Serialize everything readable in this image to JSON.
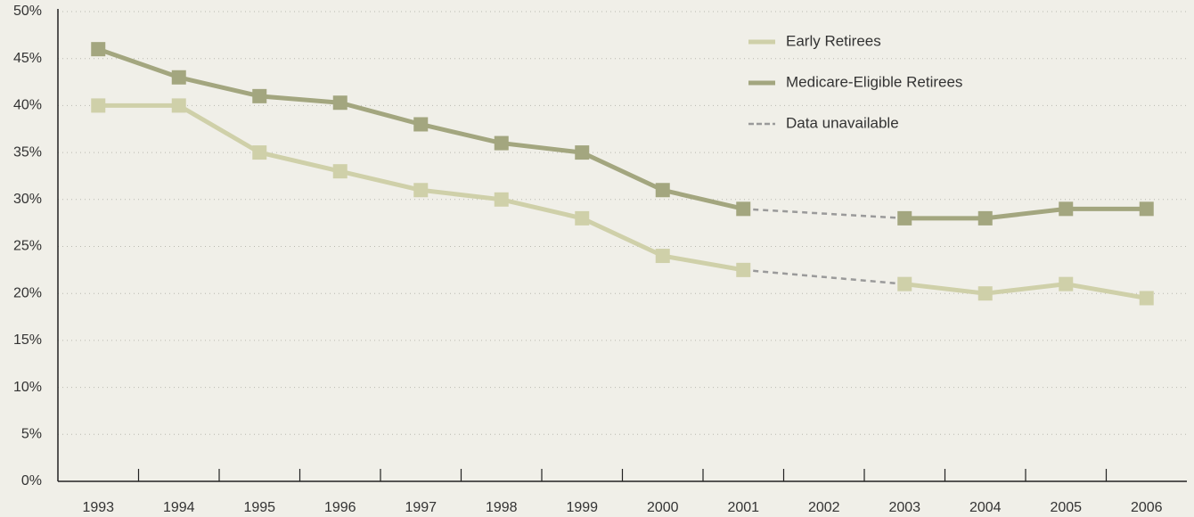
{
  "chart_data": {
    "type": "line",
    "categories": [
      "1993",
      "1994",
      "1995",
      "1996",
      "1997",
      "1998",
      "1999",
      "2000",
      "2001",
      "2002",
      "2003",
      "2004",
      "2005",
      "2006"
    ],
    "series": [
      {
        "name": "Early Retirees",
        "color": "#cfd0a9",
        "values": [
          40,
          40,
          35,
          33,
          31,
          30,
          28,
          24,
          22.5,
          null,
          21,
          20,
          21,
          19.5
        ]
      },
      {
        "name": "Medicare-Eligible Retirees",
        "color": "#a3a67f",
        "values": [
          46,
          43,
          41,
          40.3,
          38,
          36,
          35,
          31,
          29,
          null,
          28,
          28,
          29,
          29
        ]
      }
    ],
    "gap_label": "Data unavailable",
    "gap_color": "#9a9a9a",
    "ylim": [
      0,
      50
    ],
    "yticks": [
      {
        "value": 0,
        "label": "0%"
      },
      {
        "value": 5,
        "label": "5%"
      },
      {
        "value": 10,
        "label": "10%"
      },
      {
        "value": 15,
        "label": "15%"
      },
      {
        "value": 20,
        "label": "20%"
      },
      {
        "value": 25,
        "label": "25%"
      },
      {
        "value": 30,
        "label": "30%"
      },
      {
        "value": 35,
        "label": "35%"
      },
      {
        "value": 40,
        "label": "40%"
      },
      {
        "value": 45,
        "label": "45%"
      },
      {
        "value": 50,
        "label": "50%"
      }
    ],
    "grid": true,
    "legend": "top-right"
  }
}
